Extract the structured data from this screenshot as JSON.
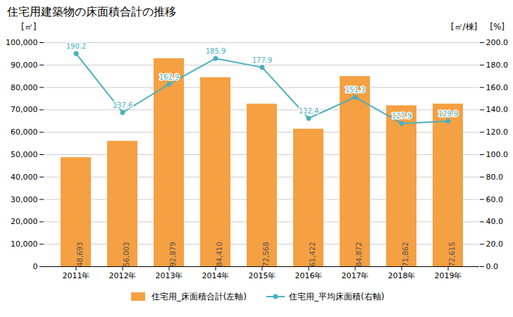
{
  "chart_data": {
    "type": "bar",
    "title": "住宅用建築物の床面積合計の推移",
    "categories": [
      "2011年",
      "2012年",
      "2013年",
      "2014年",
      "2015年",
      "2016年",
      "2017年",
      "2018年",
      "2019年"
    ],
    "series": [
      {
        "name": "住宅用_床面積合計(左軸)",
        "type": "bar",
        "color": "#F5A042",
        "values": [
          48693,
          56003,
          92879,
          84410,
          72568,
          61422,
          84872,
          71862,
          72615
        ],
        "value_labels": [
          "48,693",
          "56,003",
          "92,879",
          "84,410",
          "72,568",
          "61,422",
          "84,872",
          "71,862",
          "72,615"
        ]
      },
      {
        "name": "住宅用_平均床面積(右軸)",
        "type": "line",
        "color": "#4BAFC0",
        "axis": "y2",
        "marker": "circle",
        "values": [
          190.2,
          137.6,
          162.9,
          185.9,
          177.9,
          132.4,
          151.3,
          127.9,
          129.9
        ]
      }
    ],
    "y_label": "[㎡]",
    "y2_label": "[㎡/棟]",
    "annotations": [
      "[%]"
    ],
    "ylim": [
      0,
      100000
    ],
    "yticks": [
      0,
      {
        "value": 10000,
        "label": "10,000"
      },
      {
        "value": 20000,
        "label": "20,000"
      },
      {
        "value": 30000,
        "label": "30,000"
      },
      {
        "value": 40000,
        "label": "40,000"
      },
      {
        "value": 50000,
        "label": "50,000"
      },
      {
        "value": 60000,
        "label": "60,000"
      },
      {
        "value": 70000,
        "label": "70,000"
      },
      {
        "value": 80000,
        "label": "80,000"
      },
      {
        "value": 90000,
        "label": "90,000"
      },
      {
        "value": 100000,
        "label": "100,000"
      }
    ],
    "y2lim": [
      0,
      200
    ],
    "y2ticks": [
      {
        "value": 0,
        "label": "0.0"
      },
      {
        "value": 20,
        "label": "20.0"
      },
      {
        "value": 40,
        "label": "40.0"
      },
      {
        "value": 60,
        "label": "60.0"
      },
      {
        "value": 80,
        "label": "80.0"
      },
      {
        "value": 100,
        "label": "100.0"
      },
      {
        "value": 120,
        "label": "120.0"
      },
      {
        "value": 140,
        "label": "140.0"
      },
      {
        "value": 160,
        "label": "160.0"
      },
      {
        "value": 180,
        "label": "180.0"
      },
      {
        "value": 200,
        "label": "200.0"
      }
    ],
    "grid": true,
    "legend": "bottom",
    "data_labels": true
  }
}
